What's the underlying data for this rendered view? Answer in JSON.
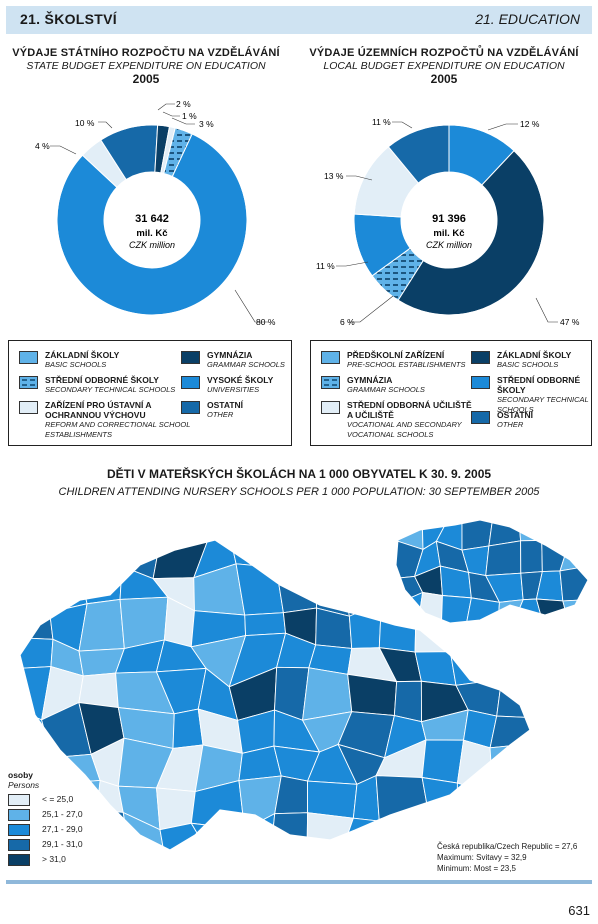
{
  "header": {
    "left": "21. ŠKOLSTVÍ",
    "right": "21. EDUCATION"
  },
  "colors": {
    "c1": "#e2eef7",
    "c2": "#5fb2e8",
    "c3": "#1c8ad8",
    "c4": "#1669a8",
    "c5": "#0a3f66"
  },
  "chart_data": [
    {
      "type": "pie",
      "title": "VÝDAJE STÁTNÍHO ROZPOČTU NA VZDĚLÁVÁNÍ",
      "subtitle": "STATE BUDGET EXPENDITURE ON EDUCATION",
      "year": "2005",
      "center": {
        "value": "31 642",
        "unit": "mil. Kč",
        "unit_en": "CZK million"
      },
      "slices": [
        {
          "name": "Vysoké školy",
          "value": 80,
          "label": "80 %",
          "color": "#1c8ad8",
          "pattern": "none"
        },
        {
          "name": "Základní školy",
          "value": 4,
          "label": "4 %",
          "color": "#e2eef7",
          "pattern": "none"
        },
        {
          "name": "Ostatní",
          "value": 10,
          "label": "10 %",
          "color": "#1669a8",
          "pattern": "none"
        },
        {
          "name": "Gymnázia",
          "value": 2,
          "label": "2 %",
          "color": "#0a3f66",
          "pattern": "none"
        },
        {
          "name": "Zařízení pro ústavní a ochrannou výchovu",
          "value": 1,
          "label": "1 %",
          "color": "#e2eef7",
          "pattern": "none"
        },
        {
          "name": "Střední odborné školy",
          "value": 3,
          "label": "3 %",
          "color": "#1c8ad8",
          "pattern": "dash"
        }
      ],
      "legend": [
        {
          "cz": "ZÁKLADNÍ ŠKOLY",
          "en": "BASIC SCHOOLS",
          "color": "#5fb2e8",
          "pattern": "none"
        },
        {
          "cz": "STŘEDNÍ ODBORNÉ ŠKOLY",
          "en": "SECONDARY TECHNICAL SCHOOLS",
          "color": "#5fb2e8",
          "pattern": "dash"
        },
        {
          "cz": "ZAŘÍZENÍ PRO ÚSTAVNÍ A OCHRANNOU VÝCHOVU",
          "en": "REFORM AND CORRECTIONAL SCHOOL ESTABLISHMENTS",
          "color": "#e2eef7",
          "pattern": "none"
        },
        {
          "cz": "GYMNÁZIA",
          "en": "GRAMMAR SCHOOLS",
          "color": "#0a3f66",
          "pattern": "none"
        },
        {
          "cz": "VYSOKÉ ŠKOLY",
          "en": "UNIVERSITIES",
          "color": "#1c8ad8",
          "pattern": "none"
        },
        {
          "cz": "OSTATNÍ",
          "en": "OTHER",
          "color": "#1669a8",
          "pattern": "none"
        }
      ]
    },
    {
      "type": "pie",
      "title": "VÝDAJE ÚZEMNÍCH ROZPOČTŮ NA VZDĚLÁVÁNÍ",
      "subtitle": "LOCAL BUDGET EXPENDITURE ON EDUCATION",
      "year": "2005",
      "center": {
        "value": "91 396",
        "unit": "mil. Kč",
        "unit_en": "CZK million"
      },
      "slices": [
        {
          "name": "Předškolní zařízení",
          "value": 12,
          "label": "12 %",
          "color": "#1c8ad8",
          "pattern": "none"
        },
        {
          "name": "Základní školy",
          "value": 47,
          "label": "47 %",
          "color": "#0a3f66",
          "pattern": "none"
        },
        {
          "name": "Gymnázia",
          "value": 6,
          "label": "6 %",
          "color": "#5fb2e8",
          "pattern": "dash"
        },
        {
          "name": "Střední odborné školy",
          "value": 11,
          "label": "11 %",
          "color": "#1c8ad8",
          "pattern": "none"
        },
        {
          "name": "Střední odborná učiliště a učiliště",
          "value": 13,
          "label": "13 %",
          "color": "#e2eef7",
          "pattern": "none"
        },
        {
          "name": "Ostatní",
          "value": 11,
          "label": "11 %",
          "color": "#1669a8",
          "pattern": "none"
        }
      ],
      "legend": [
        {
          "cz": "PŘEDŠKOLNÍ ZAŘÍZENÍ",
          "en": "PRE-SCHOOL ESTABLISHMENTS",
          "color": "#5fb2e8",
          "pattern": "none"
        },
        {
          "cz": "GYMNÁZIA",
          "en": "GRAMMAR SCHOOLS",
          "color": "#5fb2e8",
          "pattern": "dash"
        },
        {
          "cz": "STŘEDNÍ ODBORNÁ UČILIŠTĚ A UČILIŠTĚ",
          "en": "VOCATIONAL AND SECONDARY VOCATIONAL SCHOOLS",
          "color": "#e2eef7",
          "pattern": "none"
        },
        {
          "cz": "ZÁKLADNÍ ŠKOLY",
          "en": "BASIC SCHOOLS",
          "color": "#0a3f66",
          "pattern": "none"
        },
        {
          "cz": "STŘEDNÍ ODBORNÉ ŠKOLY",
          "en": "SECONDARY TECHNICAL SCHOOLS",
          "color": "#1c8ad8",
          "pattern": "none"
        },
        {
          "cz": "OSTATNÍ",
          "en": "OTHER",
          "color": "#1669a8",
          "pattern": "none"
        }
      ]
    },
    {
      "type": "choropleth",
      "title": "DĚTI V MATEŘSKÝCH ŠKOLÁCH NA 1 000 OBYVATEL K 30. 9. 2005",
      "subtitle": "CHILDREN ATTENDING NURSERY SCHOOLS PER 1 000 POPULATION: 30 SEPTEMBER 2005",
      "legend_title": "osoby",
      "legend_title_en": "Persons",
      "classes": [
        {
          "label": "< = 25,0",
          "color": "#e2eef7"
        },
        {
          "label": "25,1 - 27,0",
          "color": "#5fb2e8"
        },
        {
          "label": "27,1 - 29,0",
          "color": "#1c8ad8"
        },
        {
          "label": "29,1 - 31,0",
          "color": "#1669a8"
        },
        {
          "label": "> 31,0",
          "color": "#0a3f66"
        }
      ],
      "notes": {
        "total": "Česká republika/Czech Republic = 27,6",
        "max": "Maximum: Svitavy = 32,9",
        "min": "Minimum: Most = 23,5"
      }
    }
  ],
  "page_number": "631"
}
